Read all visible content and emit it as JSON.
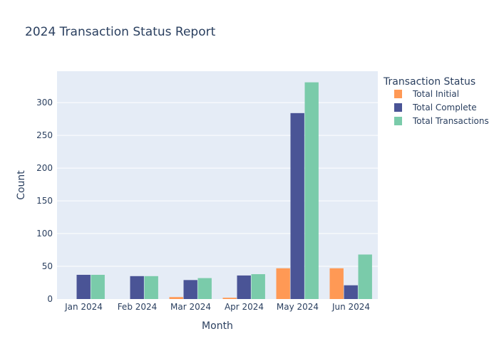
{
  "chart_data": {
    "type": "bar",
    "title": "2024 Transaction Status Report",
    "xlabel": "Month",
    "ylabel": "Count",
    "categories": [
      "Jan 2024",
      "Feb 2024",
      "Mar 2024",
      "Apr 2024",
      "May 2024",
      "Jun 2024"
    ],
    "series": [
      {
        "name": "Total Initial",
        "color": "#FF9955",
        "values": [
          0,
          0,
          3,
          2,
          47,
          47
        ]
      },
      {
        "name": "Total Complete",
        "color": "#4A5496",
        "values": [
          37,
          35,
          29,
          36,
          284,
          21
        ]
      },
      {
        "name": "Total Transactions",
        "color": "#7ACBAA",
        "values": [
          37,
          35,
          32,
          38,
          331,
          68
        ]
      }
    ],
    "ylim": [
      0,
      348
    ],
    "yticks": [
      0,
      50,
      100,
      150,
      200,
      250,
      300
    ],
    "grid": true,
    "legend": {
      "title": "Transaction Status",
      "position": "right"
    },
    "plot_background": "#E5ECF6"
  }
}
